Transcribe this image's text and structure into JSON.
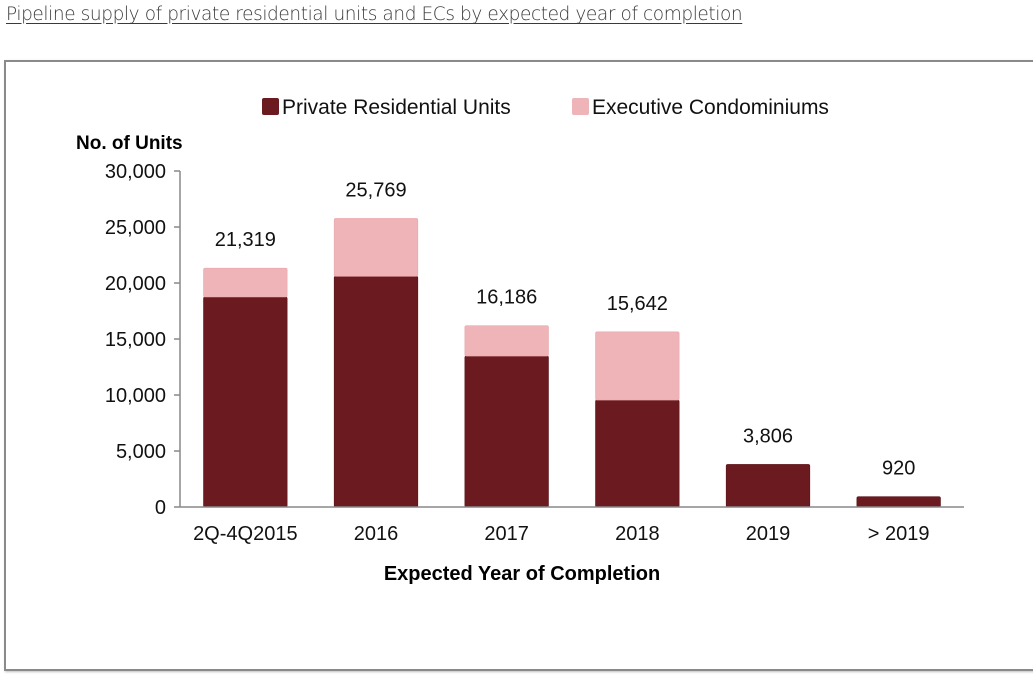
{
  "page_title": "Pipeline supply of private residential units and ECs by expected year of completion",
  "chart_data": {
    "type": "bar",
    "stacked": true,
    "title": "",
    "xlabel": "Expected Year of Completion",
    "ylabel": "No. of Units",
    "ylim": [
      0,
      30000
    ],
    "yticks": [
      0,
      5000,
      10000,
      15000,
      20000,
      25000,
      30000
    ],
    "ytick_labels": [
      "0",
      "5,000",
      "10,000",
      "15,000",
      "20,000",
      "25,000",
      "30,000"
    ],
    "grid": false,
    "legend_position": "top-center",
    "categories": [
      "2Q-4Q2015",
      "2016",
      "2017",
      "2018",
      "2019",
      "> 2019"
    ],
    "series": [
      {
        "name": "Private Residential Units",
        "color": "#6b1a20",
        "values": [
          18750,
          20600,
          13480,
          9550,
          3806,
          920
        ]
      },
      {
        "name": "Executive Condominiums",
        "color": "#efb4b7",
        "values": [
          2569,
          5169,
          2706,
          6092,
          0,
          0
        ]
      }
    ],
    "totals": [
      21319,
      25769,
      16186,
      15642,
      3806,
      920
    ],
    "total_labels": [
      "21,319",
      "25,769",
      "16,186",
      "15,642",
      "3,806",
      "920"
    ]
  }
}
